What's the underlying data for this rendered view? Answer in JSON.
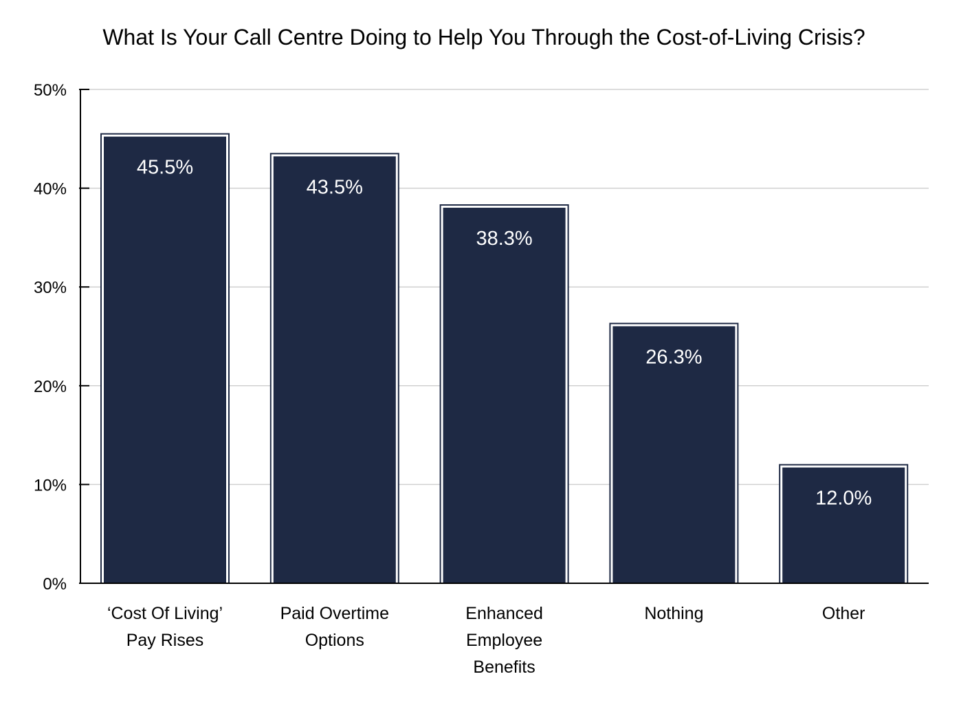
{
  "chart_data": {
    "type": "bar",
    "title": "What Is Your Call Centre Doing to Help You Through the Cost-of-Living Crisis?",
    "xlabel": "",
    "ylabel": "",
    "ylim": [
      0,
      50
    ],
    "yticks": [
      "0%",
      "10%",
      "20%",
      "30%",
      "40%",
      "50%"
    ],
    "ytick_values": [
      0,
      10,
      20,
      30,
      40,
      50
    ],
    "grid": true,
    "categories": [
      [
        "‘Cost Of Living’",
        "Pay Rises"
      ],
      [
        "Paid Overtime",
        "Options"
      ],
      [
        "Enhanced",
        "Employee",
        "Benefits"
      ],
      [
        "Nothing"
      ],
      [
        "Other"
      ]
    ],
    "values": [
      45.5,
      43.5,
      38.3,
      26.3,
      12.0
    ],
    "data_labels": [
      "45.5%",
      "43.5%",
      "38.3%",
      "26.3%",
      "12.0%"
    ],
    "colors": {
      "bar": "#1e2944",
      "grid": "#d0d0d0",
      "axis": "#000000",
      "label": "#ffffff"
    }
  }
}
